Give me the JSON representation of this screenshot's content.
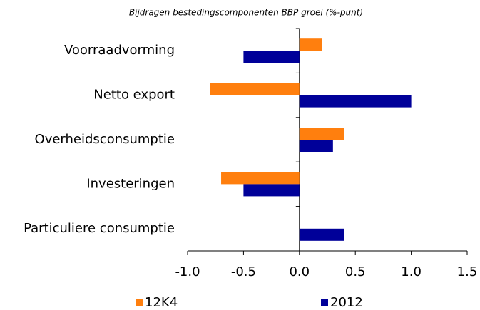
{
  "chart_data": {
    "type": "hbar",
    "title": "Bijdragen bestedingscomponenten BBP groei (%-punt)",
    "categories": [
      "Voorraadvorming",
      "Netto export",
      "Overheidsconsumptie",
      "Investeringen",
      "Particuliere consumptie"
    ],
    "series": [
      {
        "name": "12K4",
        "color": "#ff7f0e",
        "values": [
          0.2,
          -0.8,
          0.4,
          -0.7,
          0.0
        ]
      },
      {
        "name": "2012",
        "color": "#000099",
        "values": [
          -0.5,
          1.0,
          0.3,
          -0.5,
          0.4
        ]
      }
    ],
    "xlim": [
      -1.0,
      1.5
    ],
    "xticks": [
      {
        "value": -1.0,
        "label": "-1.0"
      },
      -0.5,
      {
        "value": 0.0,
        "label": "0.0"
      },
      0.5,
      {
        "value": 1.0,
        "label": "1.0"
      },
      1.5
    ],
    "legend": "bottom"
  }
}
